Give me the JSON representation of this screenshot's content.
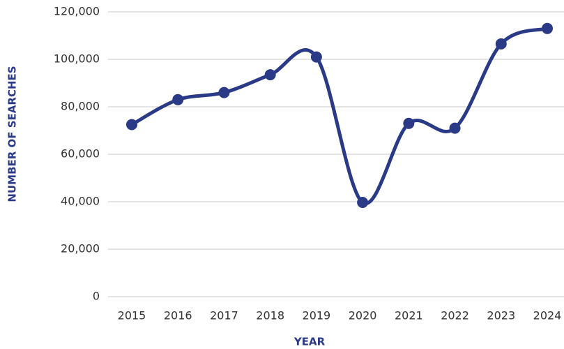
{
  "chart_data": {
    "type": "line",
    "x_label": "YEAR",
    "y_label": "NUMBER OF SEARCHES",
    "categories": [
      "2015",
      "2016",
      "2017",
      "2018",
      "2019",
      "2020",
      "2021",
      "2022",
      "2023",
      "2024"
    ],
    "values": [
      72500,
      83000,
      86000,
      93500,
      101000,
      39700,
      73000,
      71000,
      106500,
      113000
    ],
    "color": "#2b3a87",
    "ylim": [
      0,
      120000
    ],
    "yticks": [
      0,
      {
        "value": 20000,
        "label": "20,000"
      },
      {
        "value": 40000,
        "label": "40,000"
      },
      {
        "value": 60000,
        "label": "60,000"
      },
      {
        "value": 80000,
        "label": "80,000"
      },
      {
        "value": 100000,
        "label": "100,000"
      },
      {
        "value": 120000,
        "label": "120,000"
      }
    ],
    "grid": true
  }
}
